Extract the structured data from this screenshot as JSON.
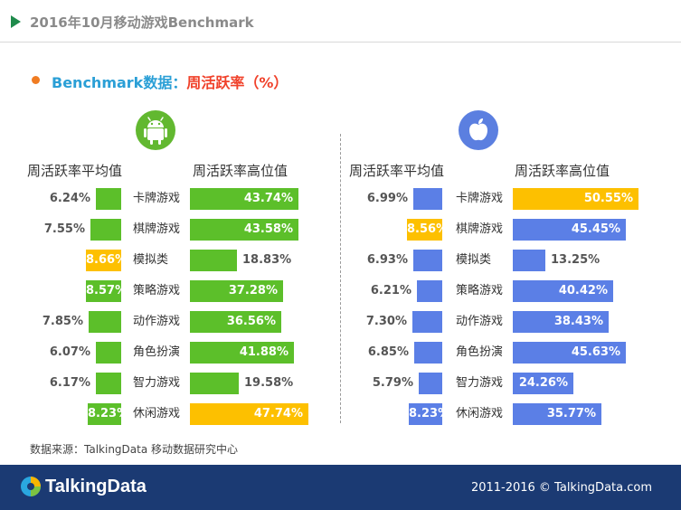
{
  "header": {
    "title": "2016年10月移动游戏Benchmark"
  },
  "subtitle": {
    "part1": "Benchmark数据：",
    "part2": "周活跃率（%）"
  },
  "columns": {
    "android_avg": "周活跃率平均值",
    "android_high": "周活跃率高位值",
    "ios_avg": "周活跃率平均值",
    "ios_high": "周活跃率高位值"
  },
  "icons": {
    "android": "android-logo-icon",
    "apple": "apple-logo-icon",
    "brand": "talkingdata-logo-icon"
  },
  "colors": {
    "green": "#5cbf2a",
    "yellow": "#fdc000",
    "blue": "#5b7fe6",
    "brand": "#1b3a73"
  },
  "chart_data": [
    {
      "type": "bar",
      "platform": "android",
      "categories": [
        "卡牌游戏",
        "棋牌游戏",
        "模拟类",
        "策略游戏",
        "动作游戏",
        "角色扮演",
        "智力游戏",
        "休闲游戏"
      ],
      "series": [
        {
          "name": "周活跃率平均值",
          "values": [
            6.24,
            7.55,
            8.66,
            8.57,
            7.85,
            6.07,
            6.17,
            8.23
          ],
          "labels": [
            "6.24%",
            "7.55%",
            "8.66%",
            "8.57%",
            "7.85%",
            "6.07%",
            "6.17%",
            "8.23%"
          ],
          "highlight": [
            false,
            false,
            true,
            false,
            false,
            false,
            false,
            false
          ]
        },
        {
          "name": "周活跃率高位值",
          "values": [
            43.74,
            43.58,
            18.83,
            37.28,
            36.56,
            41.88,
            19.58,
            47.74
          ],
          "labels": [
            "43.74%",
            "43.58%",
            "18.83%",
            "37.28%",
            "36.56%",
            "41.88%",
            "19.58%",
            "47.74%"
          ],
          "highlight": [
            false,
            false,
            false,
            false,
            false,
            false,
            false,
            true
          ]
        }
      ]
    },
    {
      "type": "bar",
      "platform": "ios",
      "categories": [
        "卡牌游戏",
        "棋牌游戏",
        "模拟类",
        "策略游戏",
        "动作游戏",
        "角色扮演",
        "智力游戏",
        "休闲游戏"
      ],
      "series": [
        {
          "name": "周活跃率平均值",
          "values": [
            6.99,
            8.56,
            6.93,
            6.21,
            7.3,
            6.85,
            5.79,
            8.23
          ],
          "labels": [
            "6.99%",
            "8.56%",
            "6.93%",
            "6.21%",
            "7.30%",
            "6.85%",
            "5.79%",
            "8.23%"
          ],
          "highlight": [
            false,
            true,
            false,
            false,
            false,
            false,
            false,
            false
          ]
        },
        {
          "name": "周活跃率高位值",
          "values": [
            50.55,
            45.45,
            13.25,
            40.42,
            38.43,
            45.63,
            24.26,
            35.77
          ],
          "labels": [
            "50.55%",
            "45.45%",
            "13.25%",
            "40.42%",
            "38.43%",
            "45.63%",
            "24.26%",
            "35.77%"
          ],
          "highlight": [
            true,
            false,
            false,
            false,
            false,
            false,
            false,
            false
          ]
        }
      ]
    }
  ],
  "source": "数据来源：TalkingData 移动数据研究中心",
  "footer": {
    "brand": "TalkingData",
    "copyright": "2011-2016 © TalkingData.com"
  }
}
